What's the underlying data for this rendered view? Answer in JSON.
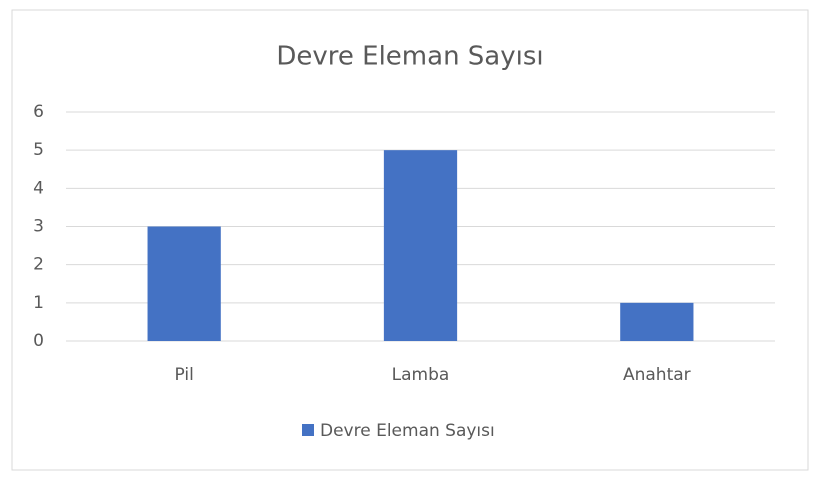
{
  "chart_data": {
    "type": "bar",
    "title": "Devre Eleman Sayısı",
    "categories": [
      "Pil",
      "Lamba",
      "Anahtar"
    ],
    "series": [
      {
        "name": "Devre Eleman Sayısı",
        "color": "#4472c4",
        "values": [
          3,
          5,
          1
        ]
      }
    ],
    "ylim": [
      0,
      6
    ],
    "yticks": [
      0,
      1,
      2,
      3,
      4,
      5,
      6
    ],
    "grid": true,
    "legend": "bottom"
  }
}
